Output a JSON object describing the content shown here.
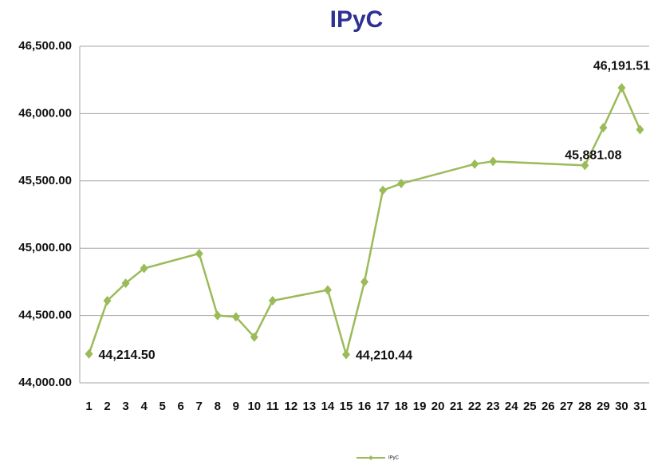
{
  "chart_data": {
    "type": "line",
    "title": "IPyC",
    "x": [
      1,
      2,
      3,
      4,
      7,
      8,
      9,
      10,
      11,
      14,
      15,
      16,
      17,
      18,
      22,
      23,
      28,
      29,
      30,
      31
    ],
    "series": [
      {
        "name": "IPyC",
        "color": "#9bbb59",
        "values": [
          44214.5,
          44610,
          44740,
          44850,
          44960,
          44500,
          44490,
          44340,
          44610,
          44690,
          44210.44,
          44750,
          45430,
          45480,
          45625,
          45645,
          45615,
          45895,
          46191.51,
          45881.08
        ],
        "value_labels": [
          "44,214.50",
          null,
          null,
          null,
          null,
          null,
          null,
          null,
          null,
          null,
          "44,210.44",
          null,
          null,
          null,
          null,
          null,
          null,
          null,
          "46,191.51",
          "45,881.08"
        ]
      }
    ],
    "xlim": [
      0.5,
      31.5
    ],
    "xticks": [
      1,
      2,
      3,
      4,
      5,
      6,
      7,
      8,
      9,
      10,
      11,
      12,
      13,
      14,
      15,
      16,
      17,
      18,
      19,
      20,
      21,
      22,
      23,
      24,
      25,
      26,
      27,
      28,
      29,
      30,
      31
    ],
    "ylim": [
      44000,
      46500
    ],
    "yticks": [
      {
        "value": 44000,
        "label": "44,000.00"
      },
      {
        "value": 44500,
        "label": "44,500.00"
      },
      {
        "value": 45000,
        "label": "45,000.00"
      },
      {
        "value": 45500,
        "label": "45,500.00"
      },
      {
        "value": 46000,
        "label": "46,000.00"
      },
      {
        "value": 46500,
        "label": "46,500.00"
      }
    ],
    "grid": true,
    "legend": "bottom"
  }
}
